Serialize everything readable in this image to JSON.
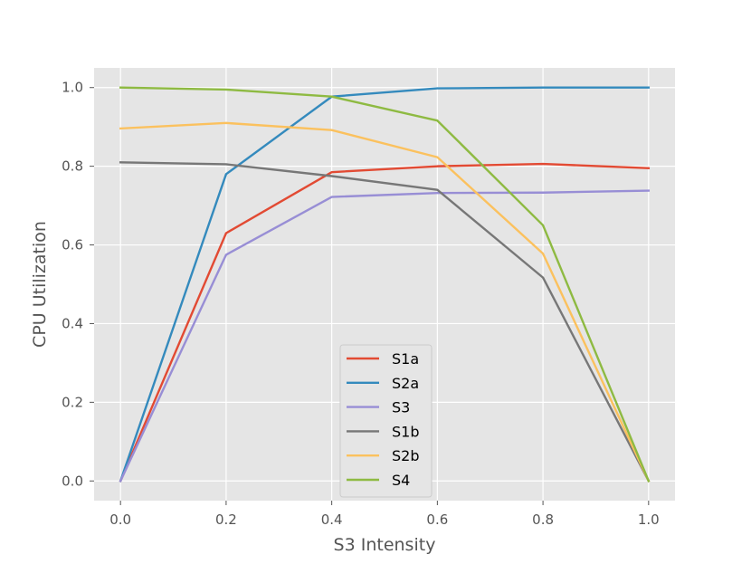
{
  "chart_data": {
    "type": "line",
    "title": "",
    "xlabel": "S3 Intensity",
    "ylabel": "CPU Utilization",
    "x": [
      0.0,
      0.2,
      0.4,
      0.6,
      0.8,
      1.0
    ],
    "xlim": [
      -0.05,
      1.05
    ],
    "ylim": [
      -0.05,
      1.05
    ],
    "xticks": [
      "0.0",
      "0.2",
      "0.4",
      "0.6",
      "0.8",
      "1.0"
    ],
    "yticks": [
      "0.0",
      "0.2",
      "0.4",
      "0.6",
      "0.8",
      "1.0"
    ],
    "grid": true,
    "legend_position": "lower-center",
    "series": [
      {
        "name": "S1a",
        "color": "#e24a33",
        "values": [
          0.0,
          0.63,
          0.785,
          0.8,
          0.806,
          0.795
        ]
      },
      {
        "name": "S2a",
        "color": "#348abd",
        "values": [
          0.0,
          0.78,
          0.977,
          0.998,
          1.0,
          1.0
        ]
      },
      {
        "name": "S3",
        "color": "#988ed5",
        "values": [
          0.0,
          0.575,
          0.722,
          0.732,
          0.733,
          0.738
        ]
      },
      {
        "name": "S1b",
        "color": "#777777",
        "values": [
          0.81,
          0.805,
          0.775,
          0.74,
          0.517,
          0.0
        ]
      },
      {
        "name": "S2b",
        "color": "#fbc15e",
        "values": [
          0.896,
          0.91,
          0.892,
          0.823,
          0.578,
          0.0
        ]
      },
      {
        "name": "S4",
        "color": "#8eba42",
        "values": [
          1.0,
          0.995,
          0.977,
          0.916,
          0.65,
          0.0
        ]
      }
    ]
  }
}
